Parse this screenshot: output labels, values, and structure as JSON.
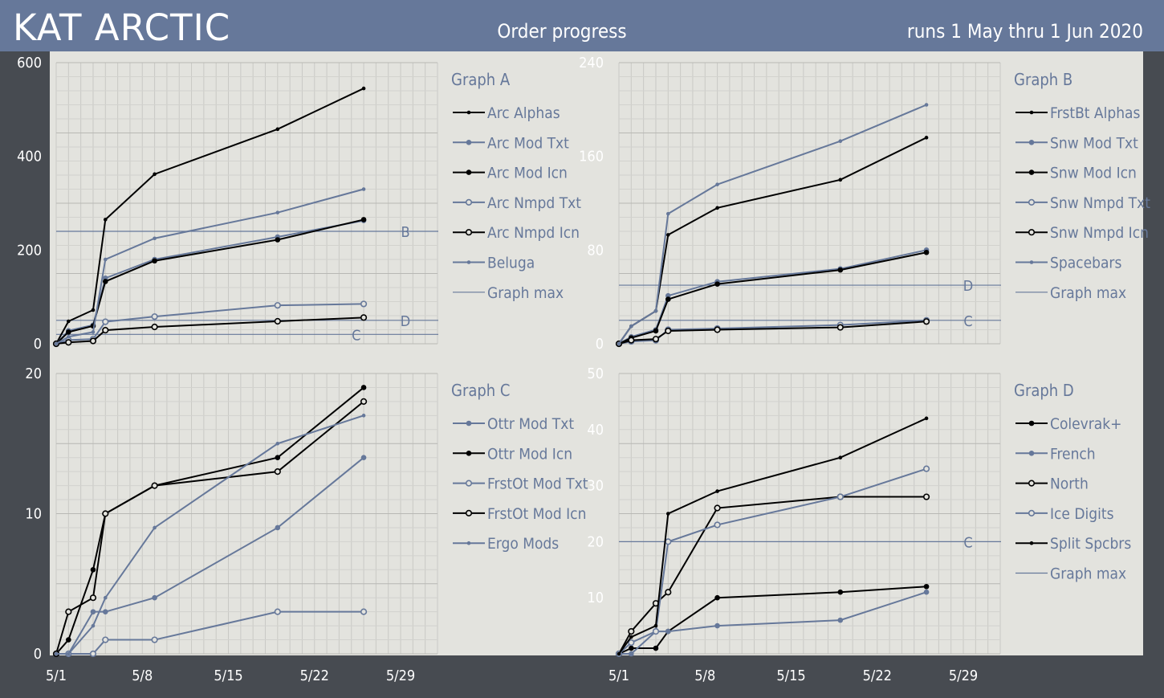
{
  "header": {
    "brand": "KAT ARCTIC",
    "title": "Order progress",
    "date_range": "runs 1 May thru 1 Jun 2020"
  },
  "colors": {
    "black": "#000000",
    "blue": "#66789a",
    "header_bg": "#66789a",
    "plot_bg": "#e3e3de",
    "frame_bg": "#474b51"
  },
  "chart_data": [
    {
      "type": "line",
      "title": "Graph A",
      "x": [
        "5/1",
        "5/2",
        "5/4",
        "5/5",
        "5/9",
        "5/19",
        "5/26"
      ],
      "xticks": [
        "5/1",
        "5/8",
        "5/15",
        "5/22",
        "5/29"
      ],
      "xlim": [
        "5/1",
        "6/1"
      ],
      "ylim": [
        0,
        600
      ],
      "yticks": [
        "0",
        "200",
        "400",
        "600"
      ],
      "legend": "right",
      "series": [
        {
          "name": "Arc Alphas",
          "color": "#000000",
          "marker": "dot-small",
          "values": [
            0,
            48,
            72,
            265,
            362,
            458,
            545
          ]
        },
        {
          "name": "Arc Mod Txt",
          "color": "#66789a",
          "marker": "dot",
          "values": [
            0,
            28,
            40,
            140,
            180,
            228,
            263
          ]
        },
        {
          "name": "Arc Mod Icn",
          "color": "#000000",
          "marker": "dot",
          "values": [
            0,
            25,
            38,
            133,
            177,
            222,
            265
          ]
        },
        {
          "name": "Arc Nmpd Txt",
          "color": "#66789a",
          "marker": "open",
          "values": [
            0,
            8,
            10,
            47,
            58,
            82,
            85
          ]
        },
        {
          "name": "Arc Nmpd Icn",
          "color": "#000000",
          "marker": "open",
          "values": [
            0,
            3,
            6,
            29,
            36,
            48,
            56
          ]
        },
        {
          "name": "Beluga",
          "color": "#66789a",
          "marker": "dot-small",
          "values": [
            0,
            15,
            25,
            180,
            225,
            280,
            330
          ]
        }
      ],
      "graph_max": {
        "label": "Graph max",
        "lines": [
          {
            "letter": "B",
            "value": 240
          },
          {
            "letter": "D",
            "value": 50
          },
          {
            "letter": "C",
            "value": 20
          }
        ]
      }
    },
    {
      "type": "line",
      "title": "Graph B",
      "x": [
        "5/1",
        "5/2",
        "5/4",
        "5/5",
        "5/9",
        "5/19",
        "5/26"
      ],
      "xticks": [
        "5/1",
        "5/8",
        "5/15",
        "5/22",
        "5/29"
      ],
      "xlim": [
        "5/1",
        "6/1"
      ],
      "ylim": [
        0,
        240
      ],
      "yticks": [
        "0",
        "80",
        "160",
        "240"
      ],
      "legend": "right",
      "series": [
        {
          "name": "FrstBt Alphas",
          "color": "#000000",
          "marker": "dot-small",
          "values": [
            0,
            15,
            28,
            93,
            116,
            140,
            176
          ]
        },
        {
          "name": "Snw Mod Txt",
          "color": "#66789a",
          "marker": "dot",
          "values": [
            0,
            6,
            12,
            41,
            53,
            64,
            80
          ]
        },
        {
          "name": "Snw Mod Icn",
          "color": "#000000",
          "marker": "dot",
          "values": [
            0,
            5,
            11,
            38,
            51,
            63,
            78
          ]
        },
        {
          "name": "Snw Nmpd Txt",
          "color": "#66789a",
          "marker": "open",
          "values": [
            0,
            2,
            3,
            12,
            13,
            16,
            20
          ]
        },
        {
          "name": "Snw Nmpd Icn",
          "color": "#000000",
          "marker": "open",
          "values": [
            0,
            3,
            4,
            11,
            12,
            14,
            19
          ]
        },
        {
          "name": "Spacebars",
          "color": "#66789a",
          "marker": "dot-small",
          "values": [
            0,
            15,
            28,
            111,
            136,
            173,
            204
          ]
        }
      ],
      "graph_max": {
        "label": "Graph max",
        "lines": [
          {
            "letter": "D",
            "value": 50
          },
          {
            "letter": "C",
            "value": 20
          }
        ]
      }
    },
    {
      "type": "line",
      "title": "Graph C",
      "x": [
        "5/1",
        "5/2",
        "5/4",
        "5/5",
        "5/9",
        "5/19",
        "5/26"
      ],
      "xticks": [
        "5/1",
        "5/8",
        "5/15",
        "5/22",
        "5/29"
      ],
      "xlim": [
        "5/1",
        "6/1"
      ],
      "ylim": [
        0,
        20
      ],
      "yticks": [
        "0",
        "10",
        "20"
      ],
      "legend": "right",
      "series": [
        {
          "name": "Ottr Mod Txt",
          "color": "#66789a",
          "marker": "dot",
          "values": [
            0,
            0,
            3,
            3,
            4,
            9,
            14
          ]
        },
        {
          "name": "Ottr Mod Icn",
          "color": "#000000",
          "marker": "dot",
          "values": [
            0,
            1,
            6,
            10,
            12,
            14,
            19
          ]
        },
        {
          "name": "FrstOt Mod Txt",
          "color": "#66789a",
          "marker": "open",
          "values": [
            0,
            0,
            0,
            1,
            1,
            3,
            3
          ]
        },
        {
          "name": "FrstOt Mod Icn",
          "color": "#000000",
          "marker": "open",
          "values": [
            0,
            3,
            4,
            10,
            12,
            13,
            18
          ]
        },
        {
          "name": "Ergo Mods",
          "color": "#66789a",
          "marker": "dot-small",
          "values": [
            0,
            0,
            2,
            4,
            9,
            15,
            17
          ]
        }
      ],
      "graph_max": null
    },
    {
      "type": "line",
      "title": "Graph D",
      "x": [
        "5/1",
        "5/2",
        "5/4",
        "5/5",
        "5/9",
        "5/19",
        "5/26"
      ],
      "xticks": [
        "5/1",
        "5/8",
        "5/15",
        "5/22",
        "5/29"
      ],
      "xlim": [
        "5/1",
        "6/1"
      ],
      "ylim": [
        0,
        50
      ],
      "yticks": [
        "10",
        "20",
        "30",
        "40",
        "50"
      ],
      "legend": "right",
      "series": [
        {
          "name": "Colevrak+",
          "color": "#000000",
          "marker": "dot",
          "values": [
            0,
            1,
            1,
            4,
            10,
            11,
            12
          ]
        },
        {
          "name": "French",
          "color": "#66789a",
          "marker": "dot",
          "values": [
            0,
            0,
            4,
            4,
            5,
            6,
            11
          ]
        },
        {
          "name": "North",
          "color": "#000000",
          "marker": "open",
          "values": [
            0,
            4,
            9,
            11,
            26,
            28,
            28
          ]
        },
        {
          "name": "Ice Digits",
          "color": "#66789a",
          "marker": "open",
          "values": [
            0,
            2,
            4,
            20,
            23,
            28,
            33
          ]
        },
        {
          "name": "Split Spcbrs",
          "color": "#000000",
          "marker": "dot-small",
          "values": [
            0,
            3,
            5,
            25,
            29,
            35,
            42
          ]
        }
      ],
      "graph_max": {
        "label": "Graph max",
        "lines": [
          {
            "letter": "C",
            "value": 20
          }
        ]
      }
    }
  ]
}
